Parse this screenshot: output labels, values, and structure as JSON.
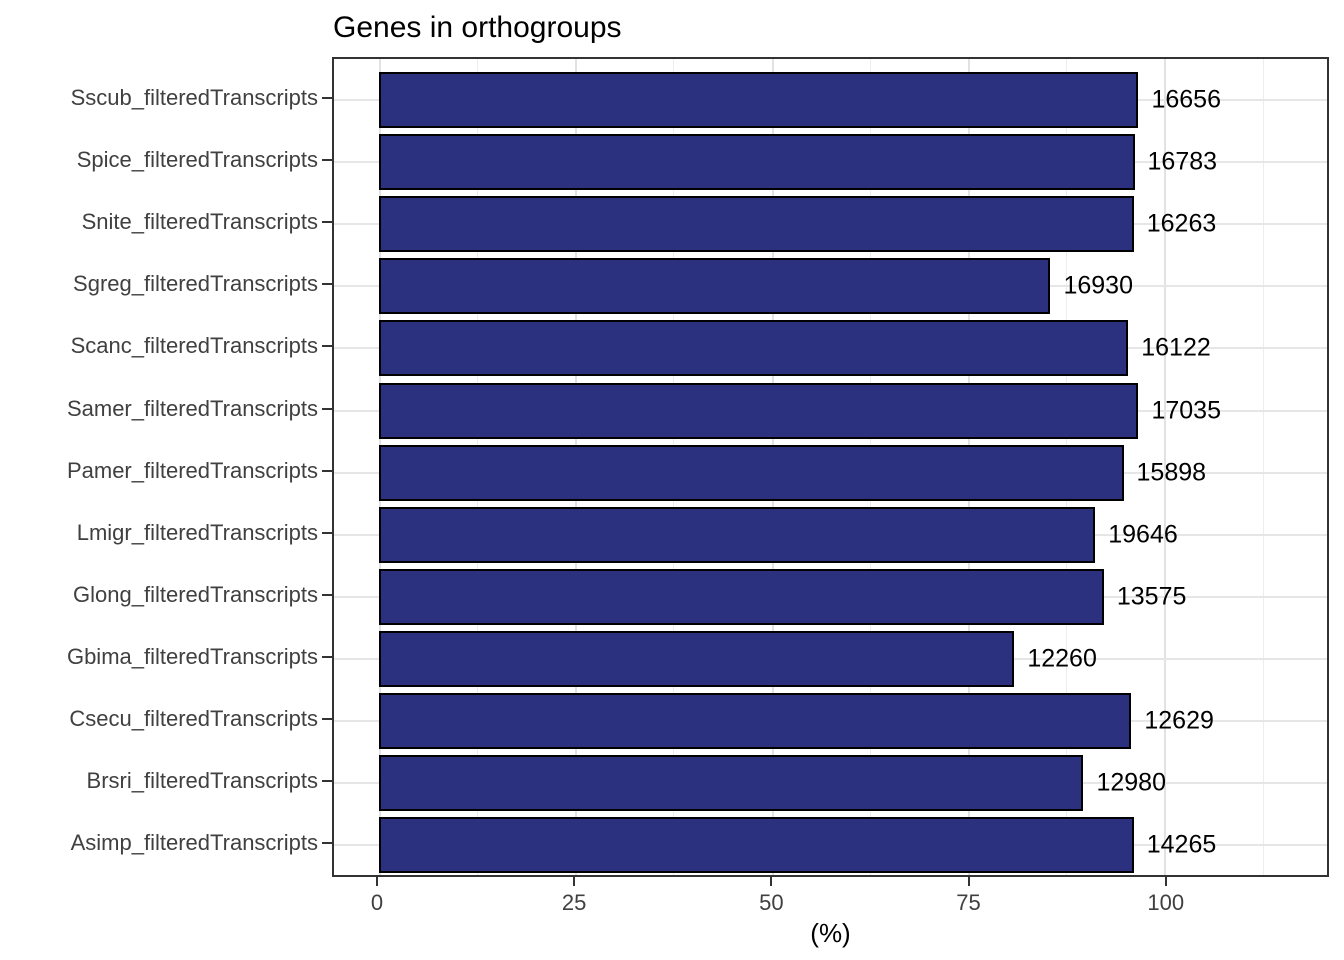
{
  "chart_data": {
    "type": "bar",
    "orientation": "horizontal",
    "title": "Genes in orthogroups",
    "xlabel": "(%)",
    "ylabel": "",
    "x_ticks": [
      0,
      25,
      50,
      75,
      100
    ],
    "x_minor_gridlines": [
      12.5,
      37.5,
      62.5,
      87.5,
      112.5
    ],
    "xlim": [
      -5.7,
      120.7
    ],
    "grid": true,
    "legend": false,
    "bars": [
      {
        "category": "Sscub_filteredTranscripts",
        "percent": 96.7,
        "label": "16656"
      },
      {
        "category": "Spice_filteredTranscripts",
        "percent": 96.2,
        "label": "16783"
      },
      {
        "category": "Snite_filteredTranscripts",
        "percent": 96.1,
        "label": "16263"
      },
      {
        "category": "Sgreg_filteredTranscripts",
        "percent": 85.5,
        "label": "16930"
      },
      {
        "category": "Scanc_filteredTranscripts",
        "percent": 95.4,
        "label": "16122"
      },
      {
        "category": "Samer_filteredTranscripts",
        "percent": 96.7,
        "label": "17035"
      },
      {
        "category": "Pamer_filteredTranscripts",
        "percent": 94.8,
        "label": "15898"
      },
      {
        "category": "Lmigr_filteredTranscripts",
        "percent": 91.2,
        "label": "19646"
      },
      {
        "category": "Glong_filteredTranscripts",
        "percent": 92.3,
        "label": "13575"
      },
      {
        "category": "Gbima_filteredTranscripts",
        "percent": 80.9,
        "label": "12260"
      },
      {
        "category": "Csecu_filteredTranscripts",
        "percent": 95.8,
        "label": "12629"
      },
      {
        "category": "Brsri_filteredTranscripts",
        "percent": 89.7,
        "label": "12980"
      },
      {
        "category": "Asimp_filteredTranscripts",
        "percent": 96.1,
        "label": "14265"
      }
    ],
    "colors": {
      "bar_fill": "#2b317e",
      "bar_stroke": "#000000",
      "grid_major": "#e2e2e2",
      "grid_minor": "#ededed",
      "panel_border": "#333333",
      "axis_text": "#404040",
      "label_text": "#000000",
      "background": "#ffffff"
    }
  }
}
